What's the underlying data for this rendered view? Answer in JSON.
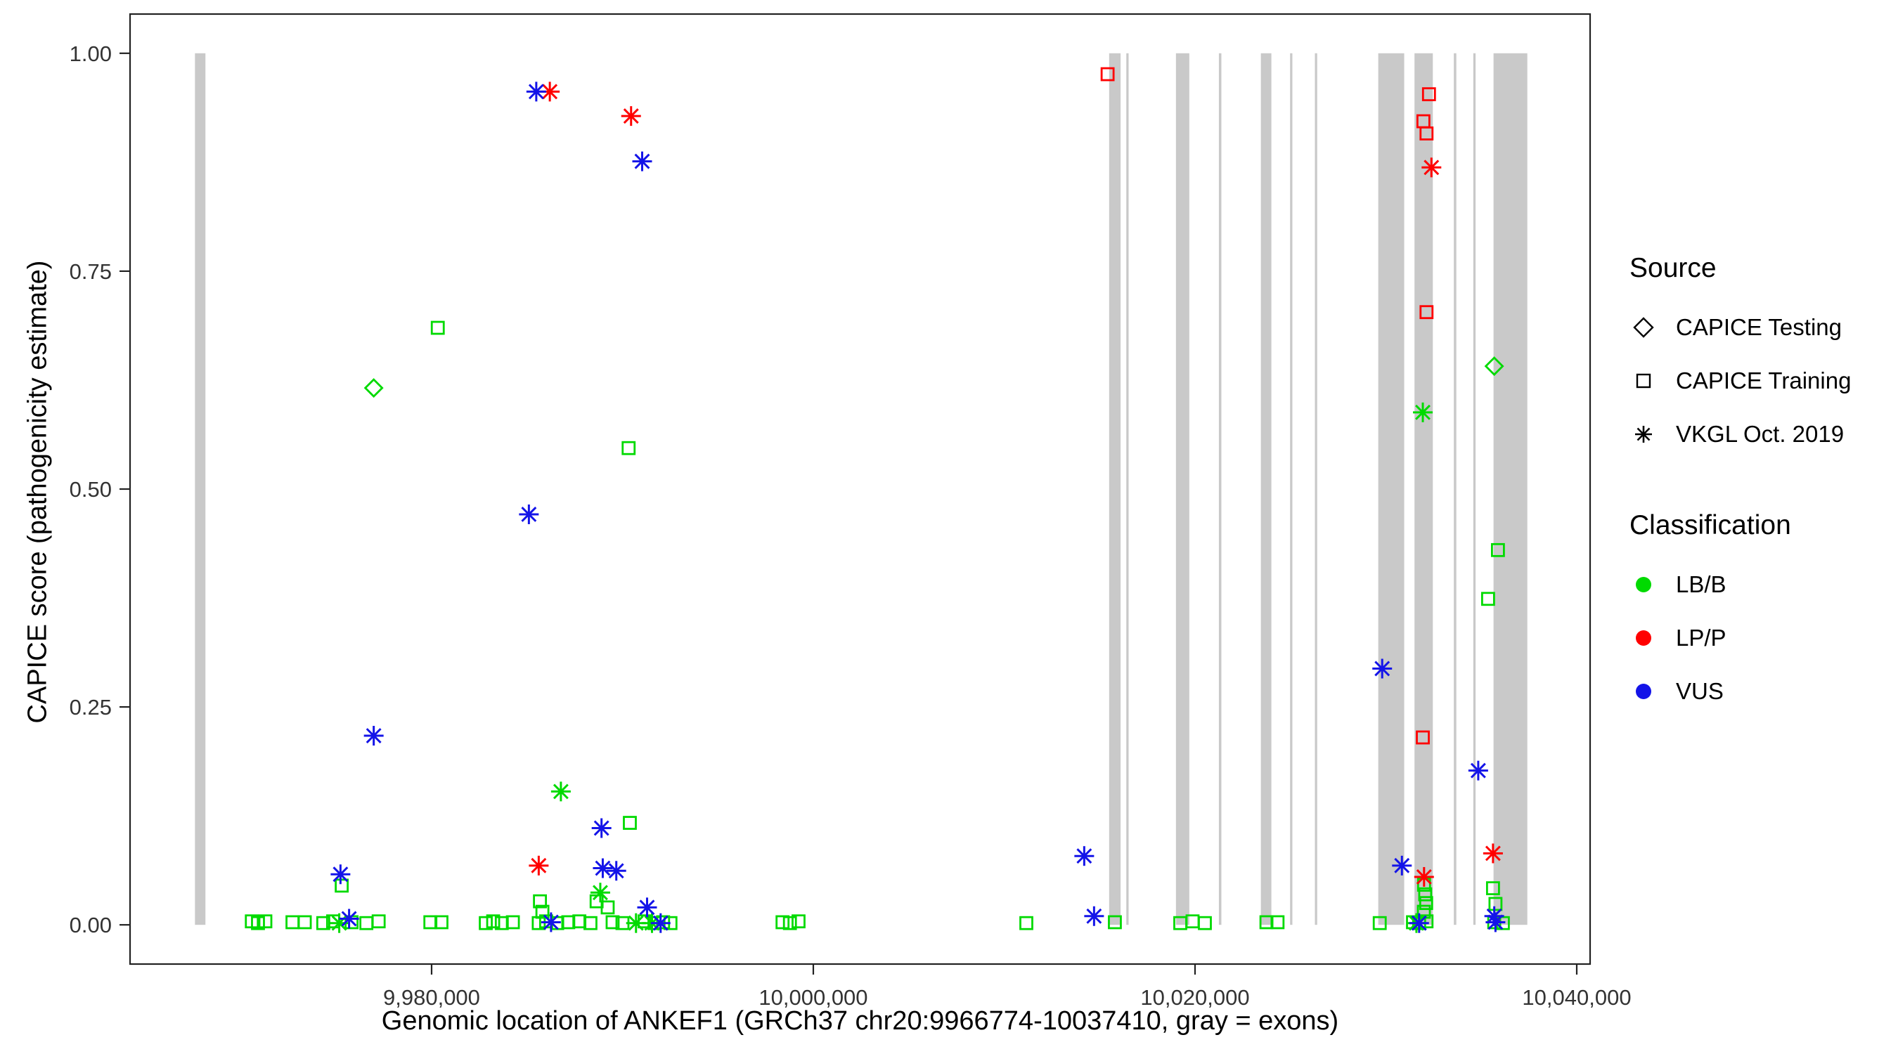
{
  "chart_data": {
    "type": "scatter",
    "xlabel": "Genomic location of ANKEF1 (GRCh37 chr20:9966774-10037410, gray = exons)",
    "ylabel": "CAPICE score (pathogenicity estimate)",
    "xlim": [
      9964200,
      10040700
    ],
    "ylim": [
      -0.045,
      1.045
    ],
    "x_ticks": [
      {
        "value": 9980000,
        "label": "9,980,000"
      },
      {
        "value": 10000000,
        "label": "10,000,000"
      },
      {
        "value": 10020000,
        "label": "10,020,000"
      },
      {
        "value": 10040000,
        "label": "10,040,000"
      }
    ],
    "y_ticks": [
      {
        "value": 0.0,
        "label": "0.00"
      },
      {
        "value": 0.25,
        "label": "0.25"
      },
      {
        "value": 0.5,
        "label": "0.50"
      },
      {
        "value": 0.75,
        "label": "0.75"
      },
      {
        "value": 1.0,
        "label": "1.00"
      }
    ],
    "exon_color": "#C9C9C9",
    "panel_border_color": "#222222",
    "tick_text_color": "#333333",
    "exons": [
      [
        9967600,
        9968150
      ],
      [
        10015500,
        10016100
      ],
      [
        10016400,
        10016520
      ],
      [
        10019000,
        10019700
      ],
      [
        10021250,
        10021380
      ],
      [
        10023450,
        10024000
      ],
      [
        10024980,
        10025100
      ],
      [
        10026280,
        10026400
      ],
      [
        10029600,
        10030960
      ],
      [
        10031500,
        10032460
      ],
      [
        10033560,
        10033690
      ],
      [
        10034580,
        10034700
      ],
      [
        10035640,
        10037410
      ]
    ],
    "legend": {
      "source_title": "Source",
      "sources": [
        {
          "id": "testing",
          "label": "CAPICE Testing",
          "shape": "diamond"
        },
        {
          "id": "training",
          "label": "CAPICE Training",
          "shape": "square"
        },
        {
          "id": "vkgl",
          "label": "VKGL Oct. 2019",
          "shape": "asterisk"
        }
      ],
      "classification_title": "Classification",
      "classes": [
        {
          "id": "lbb",
          "label": "LB/B",
          "color": "#00DA00"
        },
        {
          "id": "lpp",
          "label": "LP/P",
          "color": "#FF0000"
        },
        {
          "id": "vus",
          "label": "VUS",
          "color": "#1414E8"
        }
      ]
    },
    "series": [
      {
        "source": "training",
        "class": "lbb",
        "shape": "square",
        "points": [
          [
            9980323,
            0.685
          ],
          [
            9990323,
            0.547
          ],
          [
            10035871,
            0.43
          ],
          [
            10035355,
            0.374
          ],
          [
            9990387,
            0.117
          ],
          [
            9975290,
            0.045
          ],
          [
            10035613,
            0.042
          ],
          [
            10032000,
            0.046
          ],
          [
            10032060,
            0.035
          ],
          [
            10032110,
            0.025
          ],
          [
            10031990,
            0.015
          ],
          [
            9985677,
            0.027
          ],
          [
            9985806,
            0.015
          ],
          [
            9988645,
            0.027
          ],
          [
            9989226,
            0.02
          ],
          [
            10035742,
            0.024
          ],
          [
            9970581,
            0.004
          ],
          [
            9970903,
            0.002
          ],
          [
            9971290,
            0.004
          ],
          [
            9972710,
            0.003
          ],
          [
            9973355,
            0.003
          ],
          [
            9974323,
            0.002
          ],
          [
            9974839,
            0.004
          ],
          [
            9975806,
            0.003
          ],
          [
            9976581,
            0.002
          ],
          [
            9977226,
            0.004
          ],
          [
            9979935,
            0.003
          ],
          [
            9980516,
            0.003
          ],
          [
            9982839,
            0.002
          ],
          [
            9983226,
            0.004
          ],
          [
            9983677,
            0.002
          ],
          [
            9984258,
            0.003
          ],
          [
            9985613,
            0.002
          ],
          [
            9986000,
            0.004
          ],
          [
            9986581,
            0.002
          ],
          [
            9987161,
            0.003
          ],
          [
            9987742,
            0.004
          ],
          [
            9988323,
            0.002
          ],
          [
            9989484,
            0.003
          ],
          [
            9990000,
            0.002
          ],
          [
            9991161,
            0.004
          ],
          [
            9991677,
            0.002
          ],
          [
            9992129,
            0.003
          ],
          [
            9992516,
            0.002
          ],
          [
            9998387,
            0.003
          ],
          [
            9998774,
            0.002
          ],
          [
            9999226,
            0.004
          ],
          [
            10011161,
            0.002
          ],
          [
            10015800,
            0.003
          ],
          [
            10019226,
            0.002
          ],
          [
            10019871,
            0.004
          ],
          [
            10020516,
            0.002
          ],
          [
            10023742,
            0.003
          ],
          [
            10024323,
            0.003
          ],
          [
            10029677,
            0.002
          ],
          [
            10031419,
            0.003
          ],
          [
            10031742,
            0.002
          ],
          [
            10032129,
            0.004
          ],
          [
            10035677,
            0.003
          ],
          [
            10036129,
            0.002
          ]
        ]
      },
      {
        "source": "training",
        "class": "lpp",
        "shape": "square",
        "points": [
          [
            10015419,
            0.976
          ],
          [
            10032258,
            0.953
          ],
          [
            10031966,
            0.922
          ],
          [
            10032129,
            0.908
          ],
          [
            10032129,
            0.703
          ],
          [
            10031935,
            0.215
          ]
        ]
      },
      {
        "source": "testing",
        "class": "lbb",
        "shape": "diamond",
        "points": [
          [
            9976968,
            0.616
          ],
          [
            10035677,
            0.641
          ]
        ]
      },
      {
        "source": "vkgl",
        "class": "lbb",
        "shape": "asterisk",
        "points": [
          [
            9986774,
            0.153
          ],
          [
            10031935,
            0.588
          ],
          [
            9988839,
            0.037
          ],
          [
            9975161,
            0.002
          ],
          [
            9990710,
            0.002
          ],
          [
            9991548,
            0.002
          ],
          [
            10031600,
            0.002
          ]
        ]
      },
      {
        "source": "vkgl",
        "class": "lpp",
        "shape": "asterisk",
        "points": [
          [
            9986194,
            0.956
          ],
          [
            9990452,
            0.928
          ],
          [
            10032387,
            0.869
          ],
          [
            9985613,
            0.068
          ],
          [
            10032000,
            0.055
          ],
          [
            10035613,
            0.082
          ]
        ]
      },
      {
        "source": "vkgl",
        "class": "vus",
        "shape": "asterisk",
        "points": [
          [
            9985484,
            0.956
          ],
          [
            9991032,
            0.876
          ],
          [
            9985097,
            0.471
          ],
          [
            9976968,
            0.217
          ],
          [
            10029806,
            0.294
          ],
          [
            10034839,
            0.177
          ],
          [
            10014194,
            0.079
          ],
          [
            10030839,
            0.068
          ],
          [
            9988903,
            0.111
          ],
          [
            9988968,
            0.065
          ],
          [
            9989677,
            0.062
          ],
          [
            9975226,
            0.058
          ],
          [
            9991290,
            0.02
          ],
          [
            9975677,
            0.007
          ],
          [
            9986258,
            0.003
          ],
          [
            10014710,
            0.01
          ],
          [
            10031742,
            0.002
          ],
          [
            10035677,
            0.01
          ],
          [
            9992000,
            0.002
          ],
          [
            10035742,
            0.003
          ]
        ]
      }
    ]
  }
}
